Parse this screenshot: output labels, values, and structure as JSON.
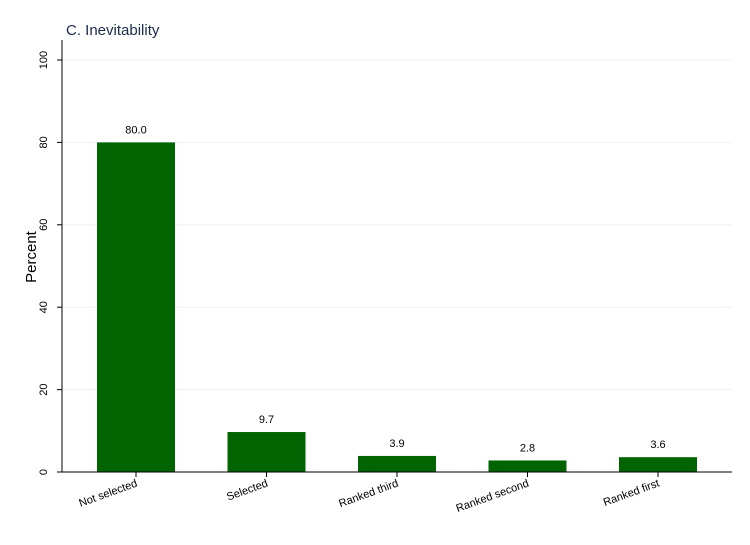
{
  "chart_data": {
    "type": "bar",
    "title": "C. Inevitability",
    "xlabel": "",
    "ylabel": "Percent",
    "categories": [
      "Not selected",
      "Selected",
      "Ranked third",
      "Ranked second",
      "Ranked first"
    ],
    "values": [
      80.0,
      9.7,
      3.9,
      2.8,
      3.6
    ],
    "value_labels": [
      "80.0",
      "9.7",
      "3.9",
      "2.8",
      "3.6"
    ],
    "ylim": [
      0,
      100
    ],
    "yticks": [
      0,
      20,
      40,
      60,
      80,
      100
    ],
    "ytick_labels": [
      "0",
      "20",
      "40",
      "60",
      "80",
      "100"
    ],
    "grid": true,
    "bar_color": "#006400",
    "legend": "none"
  }
}
